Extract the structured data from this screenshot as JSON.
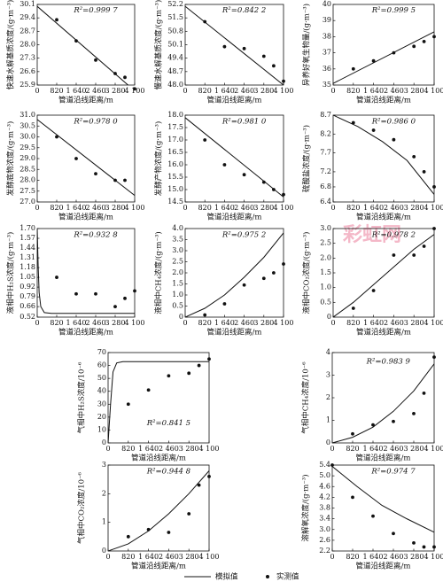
{
  "watermark": "彩虹网",
  "legend": [
    {
      "name": "模拟值",
      "mark": "line"
    },
    {
      "name": "实测值",
      "mark": "point"
    }
  ],
  "chart_data": [
    {
      "type": "line",
      "ylabel": "快速水解基质浓度/(g·m⁻³)",
      "xlabel": "管道沿线距离/m",
      "annotation": "R²=0.999 7",
      "xlim": [
        0,
        4100
      ],
      "xticks": [
        0,
        820,
        {
          "value": 1640,
          "label": "1 640"
        },
        {
          "value": 2460,
          "label": "2 460"
        },
        {
          "value": 3280,
          "label": "3 280"
        },
        {
          "value": 4100,
          "label": "4 100"
        }
      ],
      "ylim": [
        25.9,
        30.1
      ],
      "yticks": [
        25.9,
        26.6,
        27.3,
        {
          "value": 28,
          "label": "28.0"
        },
        28.7,
        29.4,
        30.1
      ],
      "model": {
        "x": [
          0,
          4100
        ],
        "values": [
          30.0,
          25.6
        ]
      },
      "measured": {
        "x": [
          820,
          1640,
          2460,
          3280,
          3690,
          4100
        ],
        "values": [
          29.3,
          28.2,
          27.2,
          26.5,
          26.3,
          25.7
        ]
      }
    },
    {
      "type": "line",
      "ylabel": "慢速水解基质浓度/(g·m⁻³)",
      "xlabel": "管道沿线距离/m",
      "annotation": "R²=0.842 2",
      "xlim": [
        0,
        4100
      ],
      "xticks": [
        0,
        820,
        {
          "value": 1640,
          "label": "1 640"
        },
        {
          "value": 2460,
          "label": "2 460"
        },
        {
          "value": 3280,
          "label": "3 280"
        },
        {
          "value": 4100,
          "label": "4 100"
        }
      ],
      "ylim": [
        48,
        52.2
      ],
      "yticks": [
        {
          "value": 48,
          "label": "48.0"
        },
        48.7,
        49.4,
        50.1,
        50.8,
        51.5,
        52.2
      ],
      "model": {
        "x": [
          0,
          4100
        ],
        "values": [
          52.1,
          48.0
        ]
      },
      "measured": {
        "x": [
          820,
          1640,
          2460,
          3280,
          3690,
          4100
        ],
        "values": [
          51.3,
          50.0,
          49.9,
          49.5,
          49.0,
          48.2
        ]
      }
    },
    {
      "type": "line",
      "ylabel": "异养好氧生物量/(g·m⁻³)",
      "xlabel": "管道沿线距离/m",
      "annotation": "R²=0.999 5",
      "xlim": [
        0,
        4100
      ],
      "xticks": [
        0,
        820,
        {
          "value": 1640,
          "label": "1 640"
        },
        {
          "value": 2460,
          "label": "2 460"
        },
        {
          "value": 3280,
          "label": "3 280"
        },
        {
          "value": 4100,
          "label": "4 100"
        }
      ],
      "ylim": [
        35,
        40
      ],
      "yticks": [
        35,
        36,
        37,
        38,
        39,
        40
      ],
      "model": {
        "x": [
          0,
          4100
        ],
        "values": [
          35.1,
          38.3
        ]
      },
      "measured": {
        "x": [
          820,
          1640,
          2460,
          3280,
          3690,
          4100
        ],
        "values": [
          36.0,
          36.5,
          37.0,
          37.4,
          37.7,
          38.0
        ]
      }
    },
    {
      "type": "line",
      "ylabel": "发酵底物浓度/(g·m⁻³)",
      "xlabel": "管道沿线距离/m",
      "annotation": "R²=0.978 0",
      "xlim": [
        0,
        4100
      ],
      "xticks": [
        0,
        820,
        {
          "value": 1640,
          "label": "1 640"
        },
        {
          "value": 2460,
          "label": "2 460"
        },
        {
          "value": 3280,
          "label": "3 280"
        },
        {
          "value": 4100,
          "label": "4 100"
        }
      ],
      "ylim": [
        27,
        31
      ],
      "yticks": [
        {
          "value": 27,
          "label": "27.0"
        },
        27.5,
        {
          "value": 28,
          "label": "28.0"
        },
        28.5,
        {
          "value": 29,
          "label": "29.0"
        },
        29.5,
        {
          "value": 30,
          "label": "30.0"
        },
        30.5,
        {
          "value": 31,
          "label": "31.0"
        }
      ],
      "model": {
        "x": [
          0,
          4100
        ],
        "values": [
          30.8,
          27.3
        ]
      },
      "measured": {
        "x": [
          820,
          1640,
          2460,
          3280,
          3690
        ],
        "values": [
          30.0,
          29.0,
          28.3,
          28.0,
          28.0
        ]
      }
    },
    {
      "type": "line",
      "ylabel": "发酵产物浓度/(g·m⁻³)",
      "xlabel": "管道沿线距离/m",
      "annotation": "R²=0.981 0",
      "xlim": [
        0,
        4100
      ],
      "xticks": [
        0,
        820,
        {
          "value": 1640,
          "label": "1 640"
        },
        {
          "value": 2460,
          "label": "2 460"
        },
        {
          "value": 3280,
          "label": "3 280"
        },
        {
          "value": 4100,
          "label": "4 100"
        }
      ],
      "ylim": [
        14.5,
        18
      ],
      "yticks": [
        14.5,
        {
          "value": 15,
          "label": "15.0"
        },
        15.5,
        {
          "value": 16,
          "label": "16.0"
        },
        16.5,
        {
          "value": 17,
          "label": "17.0"
        },
        17.5,
        {
          "value": 18,
          "label": "18.0"
        }
      ],
      "model": {
        "x": [
          0,
          4100
        ],
        "values": [
          17.9,
          14.7
        ]
      },
      "measured": {
        "x": [
          820,
          1640,
          2460,
          3280,
          3690,
          4100
        ],
        "values": [
          17.0,
          16.0,
          15.6,
          15.3,
          15.0,
          14.8
        ]
      }
    },
    {
      "type": "line",
      "ylabel": "硫酸盐浓度/(g·m⁻³)",
      "xlabel": "管道沿线距离/m",
      "annotation": "R²=0.986 0",
      "xlim": [
        0,
        4100
      ],
      "xticks": [
        0,
        820,
        {
          "value": 1640,
          "label": "1 640"
        },
        {
          "value": 2460,
          "label": "2 460"
        },
        {
          "value": 3280,
          "label": "3 280"
        },
        {
          "value": 4100,
          "label": "4 100"
        }
      ],
      "ylim": [
        6.4,
        8.7
      ],
      "yticks": [
        6.4,
        6.8,
        7.2,
        7.7,
        8.2,
        8.7
      ],
      "model": {
        "x": [
          0,
          1000,
          2000,
          3000,
          4100
        ],
        "values": [
          8.7,
          8.4,
          8.0,
          7.5,
          6.6
        ]
      },
      "measured": {
        "x": [
          820,
          1640,
          2460,
          3280,
          3690,
          4100
        ],
        "values": [
          8.5,
          8.3,
          8.05,
          7.6,
          7.2,
          6.8
        ]
      }
    },
    {
      "type": "line",
      "ylabel": "液相中H₂S浓度/(g·m⁻³)",
      "xlabel": "管道沿线距离/m",
      "annotation": "R²=0.932 8",
      "xlim": [
        0,
        4100
      ],
      "xticks": [
        0,
        820,
        {
          "value": 1640,
          "label": "1 640"
        },
        {
          "value": 2460,
          "label": "2 460"
        },
        {
          "value": 3280,
          "label": "3 280"
        },
        {
          "value": 4100,
          "label": "4 100"
        }
      ],
      "ylim": [
        0.52,
        1.7
      ],
      "yticks": [
        0.52,
        0.66,
        0.79,
        0.92,
        1.05,
        1.18,
        1.31,
        1.44,
        1.57,
        {
          "value": 1.7,
          "label": "1.70"
        }
      ],
      "model": {
        "x": [
          0,
          40,
          80,
          150,
          300,
          600,
          4100
        ],
        "values": [
          1.7,
          1.2,
          0.85,
          0.66,
          0.58,
          0.57,
          0.57
        ]
      },
      "measured": {
        "x": [
          820,
          1640,
          2460,
          3280,
          3690,
          4100
        ],
        "values": [
          1.05,
          0.83,
          0.83,
          0.66,
          0.77,
          0.87
        ]
      }
    },
    {
      "type": "line",
      "ylabel": "液相中CH₄浓度/(g·m⁻³)",
      "xlabel": "管道沿线距离/m",
      "annotation": "R²=0.975 2",
      "xlim": [
        0,
        4100
      ],
      "xticks": [
        0,
        820,
        {
          "value": 1640,
          "label": "1 640"
        },
        {
          "value": 2460,
          "label": "2 460"
        },
        {
          "value": 3280,
          "label": "3 280"
        },
        {
          "value": 4100,
          "label": "4 100"
        }
      ],
      "ylim": [
        0,
        4
      ],
      "yticks": [
        0,
        0.5,
        {
          "value": 1,
          "label": "1.0"
        },
        1.5,
        {
          "value": 2,
          "label": "2.0"
        },
        2.5,
        {
          "value": 3,
          "label": "3.0"
        },
        3.5,
        {
          "value": 4,
          "label": "4.0"
        }
      ],
      "model": {
        "x": [
          0,
          820,
          1640,
          2460,
          3280,
          4100
        ],
        "values": [
          0,
          0.4,
          1.0,
          1.8,
          2.7,
          3.8
        ]
      },
      "measured": {
        "x": [
          820,
          1640,
          2460,
          3280,
          3690,
          4100
        ],
        "values": [
          0.1,
          0.6,
          1.45,
          1.75,
          2.0,
          2.4
        ]
      }
    },
    {
      "type": "line",
      "ylabel": "液相中CO₂浓度/(g·m⁻³)",
      "xlabel": "管道沿线距离/m",
      "annotation": "R²=0.978 2",
      "xlim": [
        0,
        4100
      ],
      "xticks": [
        0,
        820,
        {
          "value": 1640,
          "label": "1 640"
        },
        {
          "value": 2460,
          "label": "2 460"
        },
        {
          "value": 3280,
          "label": "3 280"
        },
        {
          "value": 4100,
          "label": "4 100"
        }
      ],
      "ylim": [
        0,
        3
      ],
      "yticks": [
        0,
        0.5,
        {
          "value": 1,
          "label": "1.0"
        },
        1.5,
        {
          "value": 2,
          "label": "2.0"
        },
        2.5,
        {
          "value": 3,
          "label": "3.0"
        }
      ],
      "model": {
        "x": [
          0,
          820,
          1640,
          2460,
          3280,
          4100
        ],
        "values": [
          0,
          0.5,
          1.1,
          1.7,
          2.3,
          2.8
        ]
      },
      "measured": {
        "x": [
          820,
          1640,
          2460,
          3280,
          3690,
          4100
        ],
        "values": [
          0.3,
          0.9,
          2.1,
          2.1,
          2.4,
          3.0
        ]
      }
    },
    {
      "type": "line",
      "ylabel": "气相中H₂S浓度/10⁻⁶",
      "xlabel": "管道沿线距离/m",
      "annotation": "R²=0.841 5",
      "xlim": [
        0,
        4100
      ],
      "xticks": [
        0,
        820,
        {
          "value": 1640,
          "label": "1 640"
        },
        {
          "value": 2460,
          "label": "2 460"
        },
        {
          "value": 3280,
          "label": "3 280"
        },
        {
          "value": 4100,
          "label": "4 100"
        }
      ],
      "ylim": [
        0,
        70
      ],
      "yticks": [
        0,
        10,
        20,
        30,
        40,
        50,
        60,
        70
      ],
      "model": {
        "x": [
          0,
          100,
          200,
          350,
          600,
          4100
        ],
        "values": [
          0,
          30,
          55,
          62,
          63,
          63
        ]
      },
      "measured": {
        "x": [
          820,
          1640,
          2460,
          3280,
          3690,
          4100
        ],
        "values": [
          30,
          41,
          52,
          54,
          60,
          65
        ]
      }
    },
    {
      "type": "line",
      "ylabel": "气相中CH₄浓度/10⁻⁶",
      "xlabel": "管道沿线距离/m",
      "annotation": "R²=0.983 9",
      "xlim": [
        0,
        4100
      ],
      "xticks": [
        0,
        820,
        {
          "value": 1640,
          "label": "1 640"
        },
        {
          "value": 2460,
          "label": "2 460"
        },
        {
          "value": 3280,
          "label": "3 280"
        },
        {
          "value": 4100,
          "label": "4 100"
        }
      ],
      "ylim": [
        0,
        4
      ],
      "yticks": [
        0,
        1,
        2,
        3,
        4
      ],
      "model": {
        "x": [
          0,
          820,
          1640,
          2460,
          3280,
          4100
        ],
        "values": [
          0,
          0.25,
          0.7,
          1.4,
          2.3,
          3.5
        ]
      },
      "measured": {
        "x": [
          820,
          1640,
          2460,
          3280,
          3690,
          4100
        ],
        "values": [
          0.4,
          0.8,
          0.95,
          1.3,
          2.2,
          3.8
        ]
      }
    },
    {
      "type": "line",
      "ylabel": "气相中CO₂浓度/10⁻⁶",
      "xlabel": "管道沿线距离/m",
      "annotation": "R²=0.944 8",
      "xlim": [
        0,
        4100
      ],
      "xticks": [
        0,
        820,
        {
          "value": 1640,
          "label": "1 640"
        },
        {
          "value": 2460,
          "label": "2 460"
        },
        {
          "value": 3280,
          "label": "3 280"
        },
        {
          "value": 4100,
          "label": "4 100"
        }
      ],
      "ylim": [
        0,
        3
      ],
      "yticks": [
        0,
        1,
        2,
        3
      ],
      "model": {
        "x": [
          0,
          820,
          1640,
          2460,
          3280,
          4100
        ],
        "values": [
          0,
          0.25,
          0.7,
          1.3,
          2.0,
          2.8
        ]
      },
      "measured": {
        "x": [
          820,
          1640,
          2460,
          3280,
          3690,
          4100
        ],
        "values": [
          0.5,
          0.75,
          0.65,
          1.3,
          2.3,
          2.6
        ]
      }
    },
    {
      "type": "line",
      "ylabel": "溶解氧浓度/(g·m⁻³)",
      "xlabel": "管道沿线距离/m",
      "annotation": "R²=0.974 7",
      "xlim": [
        0,
        4100
      ],
      "xticks": [
        0,
        820,
        {
          "value": 1640,
          "label": "1 640"
        },
        {
          "value": 2460,
          "label": "2 460"
        },
        {
          "value": 3280,
          "label": "3 280"
        },
        {
          "value": 4100,
          "label": "4 100"
        }
      ],
      "ylim": [
        2.2,
        5.4
      ],
      "yticks": [
        2.2,
        2.6,
        {
          "value": 3,
          "label": "3.0"
        },
        3.4,
        3.8,
        4.2,
        4.6,
        {
          "value": 5,
          "label": "5.0"
        },
        5.4
      ],
      "model": {
        "x": [
          0,
          1000,
          2000,
          3000,
          4100
        ],
        "values": [
          5.35,
          4.6,
          3.9,
          3.4,
          2.9
        ]
      },
      "measured": {
        "x": [
          0,
          820,
          1640,
          2460,
          3280,
          3690,
          4100
        ],
        "values": [
          5.4,
          4.2,
          3.5,
          2.85,
          2.5,
          2.35,
          2.35
        ]
      }
    }
  ]
}
